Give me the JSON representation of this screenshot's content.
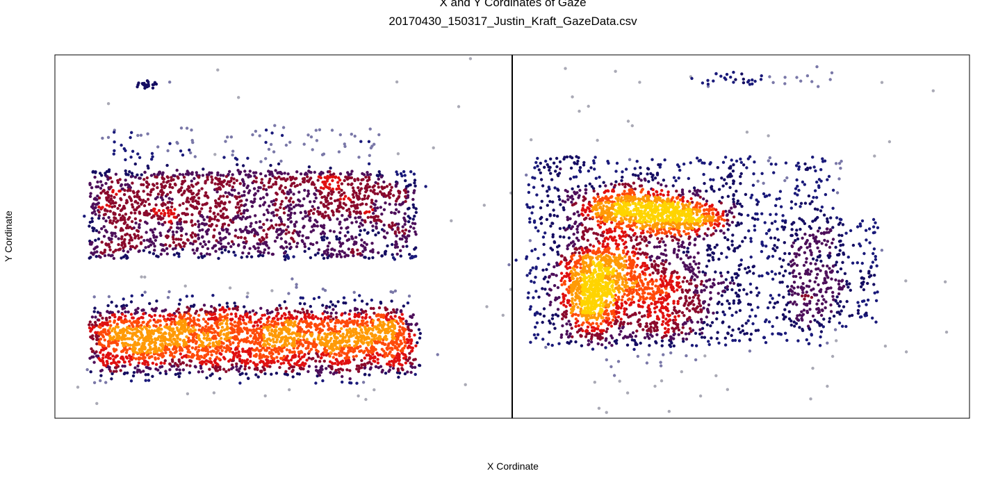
{
  "chart_data": {
    "type": "scatter",
    "title": "X and Y Cordinates of Gaze",
    "subtitle": "20170430_150317_Justin_Kraft_GazeData.csv",
    "xlabel": "X Cordinate",
    "ylabel": "Y Cordinate",
    "xlim": [
      0,
      1
    ],
    "ylim": [
      0,
      1
    ],
    "axis_ticks": "none",
    "grid": false,
    "color_scale": "point density: grey (low) → navy → dark red → red → orange → yellow (high)",
    "colors": [
      "#a9a9b5",
      "#7a78a8",
      "#1a1a7a",
      "#150d62",
      "#4d0f5a",
      "#8a0a2c",
      "#e01010",
      "#ff4a0a",
      "#ff9a06",
      "#ffd400"
    ],
    "reference_lines": [
      {
        "orientation": "vertical",
        "x": 0.5,
        "color": "#000000"
      }
    ],
    "clusters": [
      {
        "name": "left-block",
        "x_range": [
          0.035,
          0.395
        ],
        "y_range": [
          0.12,
          0.68
        ],
        "hotspot_center": [
          0.19,
          0.27
        ],
        "point_count": 4500
      },
      {
        "name": "right-block",
        "x_range": [
          0.515,
          0.88
        ],
        "y_range": [
          0.16,
          0.74
        ],
        "hotspot_centers": [
          [
            0.585,
            0.33
          ],
          [
            0.62,
            0.58
          ],
          [
            0.675,
            0.55
          ]
        ],
        "point_count": 2800
      }
    ],
    "outliers_description": "scattered light-grey points around both blocks and near the top"
  }
}
